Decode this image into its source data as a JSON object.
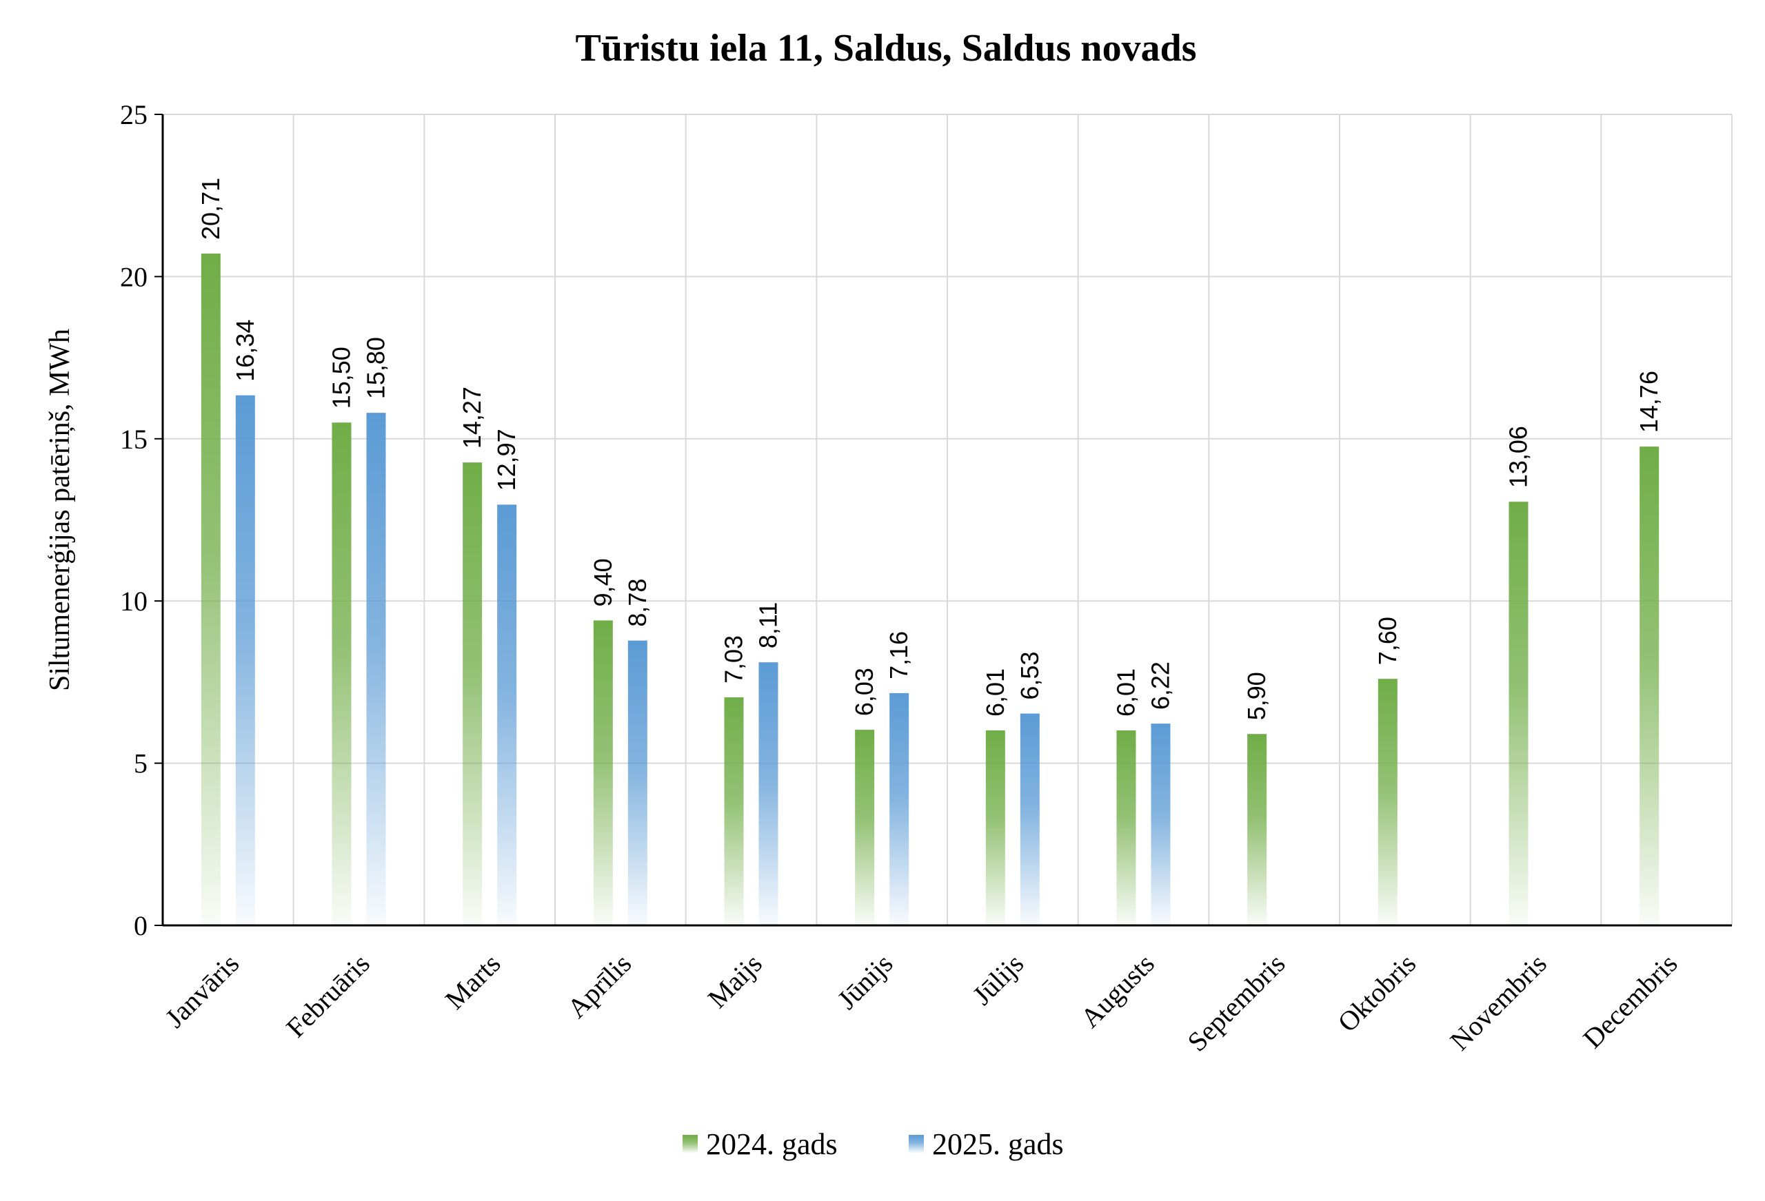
{
  "chart_data": {
    "type": "bar",
    "title": "Tūristu iela 11, Saldus, Saldus novads",
    "ylabel": "Siltumenerģijas patēriņš, MWh",
    "xlabel": "",
    "ylim": [
      0,
      25
    ],
    "yticks": [
      "0",
      "5",
      "10",
      "15",
      "20",
      "25"
    ],
    "ytick_values": [
      0,
      5,
      10,
      15,
      20,
      25
    ],
    "grid": true,
    "legend_position": "bottom",
    "categories": [
      "Janvāris",
      "Februāris",
      "Marts",
      "Aprīlis",
      "Maijs",
      "Jūnijs",
      "Jūlijs",
      "Augusts",
      "Septembris",
      "Oktobris",
      "Novembris",
      "Decembris"
    ],
    "series": [
      {
        "name": "2024. gads",
        "color": "#70ad47",
        "values": [
          20.71,
          15.5,
          14.27,
          9.4,
          7.03,
          6.03,
          6.01,
          6.01,
          5.9,
          7.6,
          13.06,
          14.76
        ],
        "labels": [
          "20,71",
          "15,50",
          "14,27",
          "9,40",
          "7,03",
          "6,03",
          "6,01",
          "6,01",
          "5,90",
          "7,60",
          "13,06",
          "14,76"
        ]
      },
      {
        "name": "2025. gads",
        "color": "#5b9bd5",
        "values": [
          16.34,
          15.8,
          12.97,
          8.78,
          8.11,
          7.16,
          6.53,
          6.22,
          null,
          null,
          null,
          null
        ],
        "labels": [
          "16,34",
          "15,80",
          "12,97",
          "8,78",
          "8,11",
          "7,16",
          "6,53",
          "6,22",
          "",
          "",
          "",
          ""
        ]
      }
    ]
  }
}
